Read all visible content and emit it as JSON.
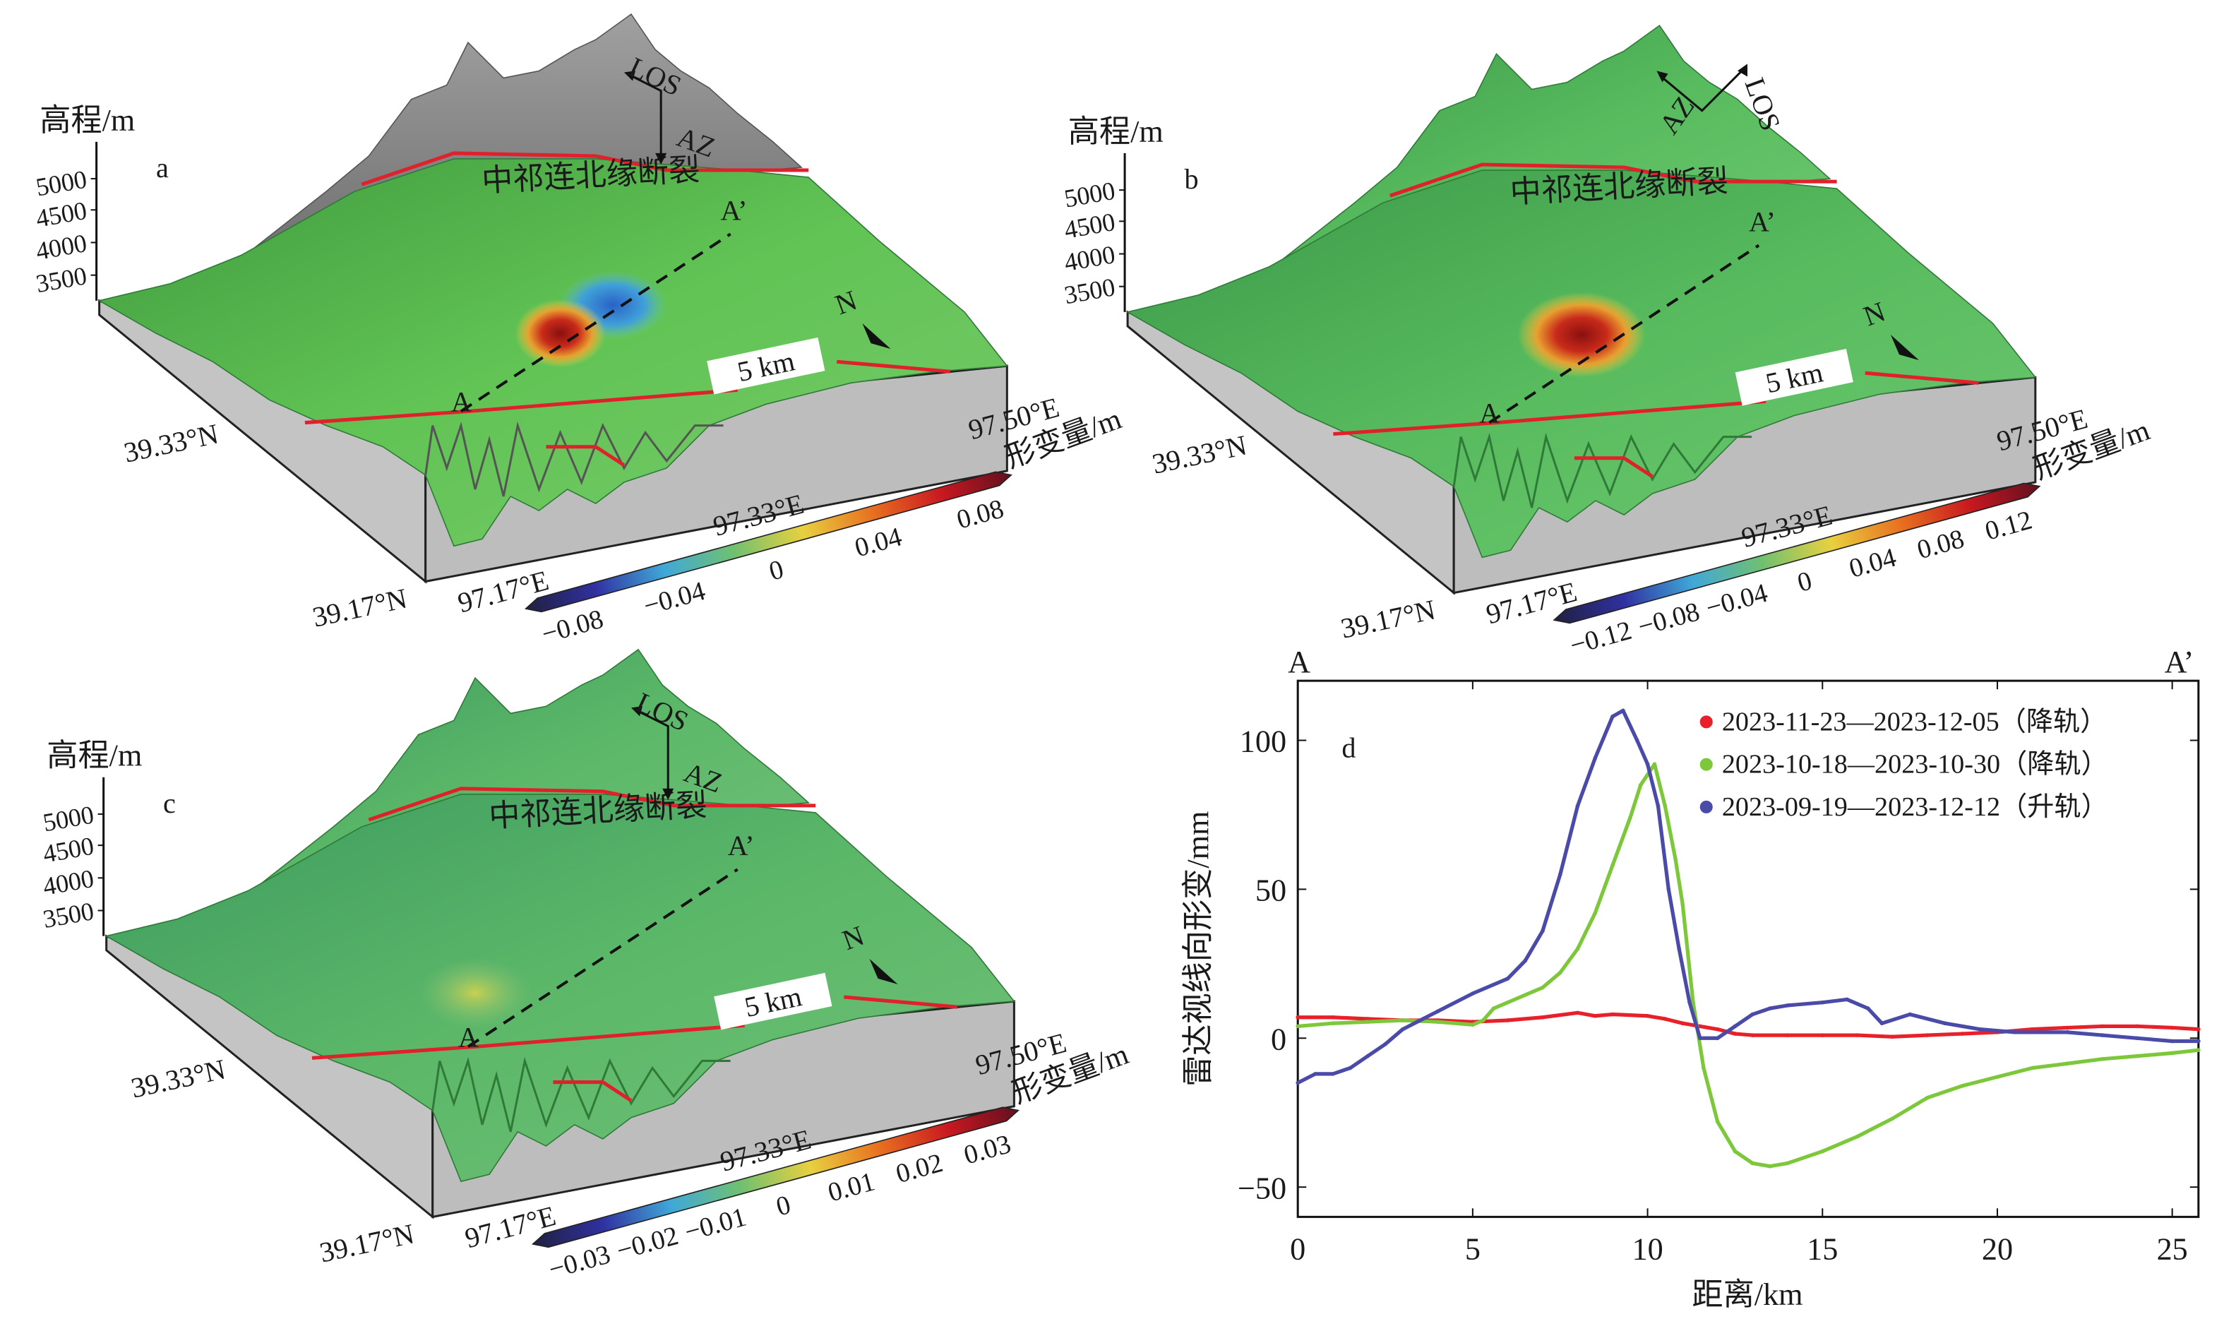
{
  "panels": [
    {
      "label": "a",
      "elevation_label": "高程/m",
      "elevation_ticks": [
        "5000",
        "4500",
        "4000",
        "3500"
      ],
      "fault_label": "中祁连北缘断裂",
      "profile_start": "A",
      "profile_end": "A’",
      "los": "LOS",
      "az": "AZ",
      "north": "N",
      "scale_bar": "5 km",
      "lat_labels": [
        "39.33°N",
        "39.17°N"
      ],
      "lon_labels": [
        "97.17°E",
        "97.33°E",
        "97.50°E"
      ],
      "colorbar": {
        "label": "形变量/m",
        "ticks": [
          "−0.08",
          "−0.04",
          "0",
          "0.04",
          "0.08"
        ]
      }
    },
    {
      "label": "b",
      "elevation_label": "高程/m",
      "elevation_ticks": [
        "5000",
        "4500",
        "4000",
        "3500"
      ],
      "fault_label": "中祁连北缘断裂",
      "profile_start": "A",
      "profile_end": "A’",
      "los": "LOS",
      "az": "AZ",
      "north": "N",
      "scale_bar": "5 km",
      "lat_labels": [
        "39.33°N",
        "39.17°N"
      ],
      "lon_labels": [
        "97.17°E",
        "97.33°E",
        "97.50°E"
      ],
      "colorbar": {
        "label": "形变量/m",
        "ticks": [
          "−0.12",
          "−0.08",
          "−0.04",
          "0",
          "0.04",
          "0.08",
          "0.12"
        ]
      }
    },
    {
      "label": "c",
      "elevation_label": "高程/m",
      "elevation_ticks": [
        "5000",
        "4500",
        "4000",
        "3500"
      ],
      "fault_label": "中祁连北缘断裂",
      "profile_start": "A",
      "profile_end": "A’",
      "los": "LOS",
      "az": "AZ",
      "north": "N",
      "scale_bar": "5 km",
      "lat_labels": [
        "39.33°N",
        "39.17°N"
      ],
      "lon_labels": [
        "97.17°E",
        "97.33°E",
        "97.50°E"
      ],
      "colorbar": {
        "label": "形变量/m",
        "ticks": [
          "−0.03",
          "−0.02",
          "−0.01",
          "0",
          "0.01",
          "0.02",
          "0.03"
        ]
      }
    }
  ],
  "colors": {
    "fault_line": "#e0202a",
    "terrain_green": "#5cc050",
    "mountain_grey": "#8a8a8a",
    "colormap": [
      "#202040",
      "#3030a0",
      "#40a8d8",
      "#70c070",
      "#e8d040",
      "#e87020",
      "#c81820",
      "#601020"
    ]
  },
  "chart_data": {
    "type": "scatter",
    "panel_label": "d",
    "profile_start": "A",
    "profile_end": "A’",
    "xlabel": "距离/km",
    "ylabel": "雷达视线向形变/mm",
    "xlim": [
      0,
      25.75
    ],
    "ylim": [
      -60,
      120
    ],
    "xticks": [
      0,
      5,
      10,
      15,
      20,
      25
    ],
    "yticks": [
      -50,
      0,
      50,
      100
    ],
    "grid": false,
    "legend_position": "top-right",
    "series": [
      {
        "name": "2023-11-23—2023-12-05（降轨）",
        "color": "#e8202a",
        "x": [
          0,
          1,
          2,
          3,
          4,
          5,
          6,
          7,
          8,
          8.5,
          9,
          10,
          10.5,
          11,
          11.5,
          12,
          12.5,
          13,
          14,
          15,
          16,
          17,
          18,
          19,
          20,
          21,
          22,
          23,
          24,
          25,
          25.75
        ],
        "y": [
          7,
          7,
          6.5,
          6,
          6,
          5.5,
          6,
          7,
          8.5,
          7.5,
          8,
          7.5,
          6.5,
          5,
          4,
          3,
          1.5,
          1,
          1,
          1,
          1,
          0.5,
          1,
          1.5,
          2,
          3,
          3.5,
          4,
          4,
          3.5,
          3
        ]
      },
      {
        "name": "2023-10-18—2023-10-30（降轨）",
        "color": "#7cc83a",
        "x": [
          0,
          1,
          2,
          3,
          4,
          5,
          5.3,
          5.6,
          6,
          7,
          7.5,
          8,
          8.5,
          9,
          9.5,
          9.8,
          10.2,
          10.5,
          10.8,
          11.0,
          11.3,
          11.6,
          12,
          12.5,
          13,
          13.5,
          14,
          15,
          16,
          17,
          18,
          19,
          20,
          21,
          22,
          23,
          24,
          25,
          25.75
        ],
        "y": [
          4,
          5,
          5.5,
          6,
          5.5,
          4.5,
          6,
          10,
          12,
          17,
          22,
          30,
          42,
          58,
          74,
          85,
          92,
          78,
          60,
          45,
          12,
          -10,
          -28,
          -38,
          -42,
          -43,
          -42,
          -38,
          -33,
          -27,
          -20,
          -16,
          -13,
          -10,
          -8.5,
          -7,
          -6,
          -5,
          -4
        ]
      },
      {
        "name": "2023-09-19—2023-12-12（升轨）",
        "color": "#4a4aa8",
        "x": [
          0,
          0.5,
          1,
          1.5,
          2,
          2.5,
          3,
          3.5,
          4,
          5,
          6,
          6.5,
          7,
          7.5,
          8,
          8.5,
          9,
          9.3,
          9.7,
          10,
          10.3,
          10.6,
          10.9,
          11.2,
          11.5,
          12,
          12.5,
          13,
          13.5,
          14,
          15,
          15.7,
          16.3,
          16.7,
          17.5,
          18.5,
          19.5,
          20.5,
          22,
          23,
          24,
          25,
          25.75
        ],
        "y": [
          -15,
          -12,
          -12,
          -10,
          -6,
          -2,
          3,
          6,
          9,
          15,
          20,
          26,
          36,
          55,
          78,
          94,
          108,
          110,
          100,
          92,
          78,
          50,
          30,
          12,
          0,
          0,
          4,
          8,
          10,
          11,
          12,
          13,
          10,
          5,
          8,
          5,
          3,
          2,
          2,
          1,
          0,
          -1,
          -1
        ]
      }
    ]
  }
}
